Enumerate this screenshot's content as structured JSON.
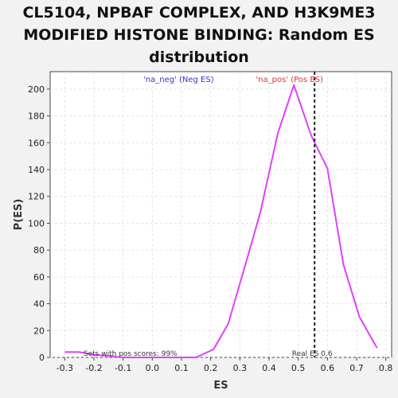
{
  "chart_data": {
    "type": "line",
    "title_lines": [
      "CL5104, NPBAF COMPLEX, AND H3K9ME3",
      "MODIFIED HISTONE BINDING: Random ES",
      "distribution"
    ],
    "xlabel": "ES",
    "ylabel": "P(ES)",
    "xlim": [
      -0.35,
      0.82
    ],
    "ylim": [
      0,
      213
    ],
    "x_ticks": [
      -0.3,
      -0.2,
      -0.1,
      0.0,
      0.1,
      0.2,
      0.3,
      0.4,
      0.5,
      0.6,
      0.7,
      0.8
    ],
    "x_tick_labels": [
      "-0.3",
      "-0.2",
      "-0.1",
      "0.0",
      "0.1",
      "0.2",
      "0.3",
      "0.4",
      "0.5",
      "0.6",
      "0.7",
      "0.8"
    ],
    "y_ticks": [
      0,
      20,
      40,
      60,
      80,
      100,
      120,
      140,
      160,
      180,
      200
    ],
    "y_tick_labels": [
      "0",
      "20",
      "40",
      "60",
      "80",
      "100",
      "120",
      "140",
      "160",
      "180",
      "200"
    ],
    "grid": true,
    "legend": {
      "neg_label": "'na_neg' (Neg ES)",
      "pos_label": "'na_pos' (Pos ES)",
      "neg_color": "#3333cc",
      "pos_color": "#dd3333",
      "placement": "top"
    },
    "series": [
      {
        "color": "#e040fb",
        "x": [
          -0.3,
          -0.25,
          -0.2,
          -0.15,
          -0.1,
          -0.05,
          0.0,
          0.05,
          0.1,
          0.15,
          0.21,
          0.26,
          0.32,
          0.37,
          0.43,
          0.485,
          0.545,
          0.6,
          0.655,
          0.71,
          0.77
        ],
        "y": [
          4,
          4,
          2,
          1,
          0,
          0,
          0,
          0,
          0,
          0,
          6,
          25,
          70,
          108,
          167,
          203,
          165,
          141,
          69,
          30,
          7
        ]
      }
    ],
    "real_es": 0.556,
    "real_es_label": "Real ES 0.6",
    "real_es_color": "#222222",
    "annotation": "Sets with pos scores: 99%"
  }
}
